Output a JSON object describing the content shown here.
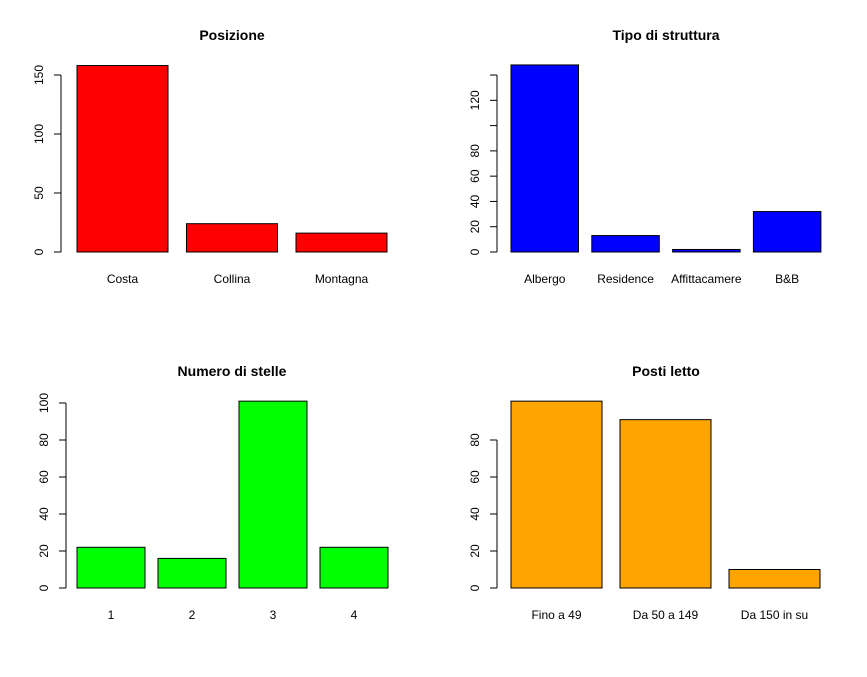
{
  "chart_data": [
    {
      "type": "bar",
      "title": "Posizione",
      "categories": [
        "Costa",
        "Collina",
        "Montagna"
      ],
      "values": [
        158,
        24,
        16
      ],
      "color": "#ff0000",
      "yticks": [
        0,
        50,
        100,
        150
      ],
      "ytick_labels": [
        "0",
        "50",
        "100",
        "150"
      ],
      "ylim": [
        0,
        160
      ]
    },
    {
      "type": "bar",
      "title": "Tipo di struttura",
      "categories": [
        "Albergo",
        "Residence",
        "Affittacamere",
        "B&B"
      ],
      "values": [
        148,
        13,
        2,
        32
      ],
      "color": "#0000ff",
      "yticks": [
        0,
        20,
        40,
        60,
        80,
        100,
        120,
        140
      ],
      "ytick_labels": [
        "0",
        "20",
        "40",
        "60",
        "80",
        "",
        "120",
        ""
      ],
      "ylim": [
        0,
        150
      ]
    },
    {
      "type": "bar",
      "title": "Numero di stelle",
      "categories": [
        "1",
        "2",
        "3",
        "4"
      ],
      "values": [
        22,
        16,
        101,
        22
      ],
      "color": "#00ff00",
      "yticks": [
        0,
        20,
        40,
        60,
        80,
        100
      ],
      "ytick_labels": [
        "0",
        "20",
        "40",
        "60",
        "80",
        "100"
      ],
      "ylim": [
        0,
        105
      ]
    },
    {
      "type": "bar",
      "title": "Posti letto",
      "categories": [
        "Fino a 49",
        "Da 50 a 149",
        "Da 150 in su"
      ],
      "values": [
        101,
        91,
        10
      ],
      "color": "#ffa500",
      "yticks": [
        0,
        20,
        40,
        60,
        80
      ],
      "ytick_labels": [
        "0",
        "20",
        "40",
        "60",
        "80"
      ],
      "ylim": [
        0,
        105
      ]
    }
  ]
}
